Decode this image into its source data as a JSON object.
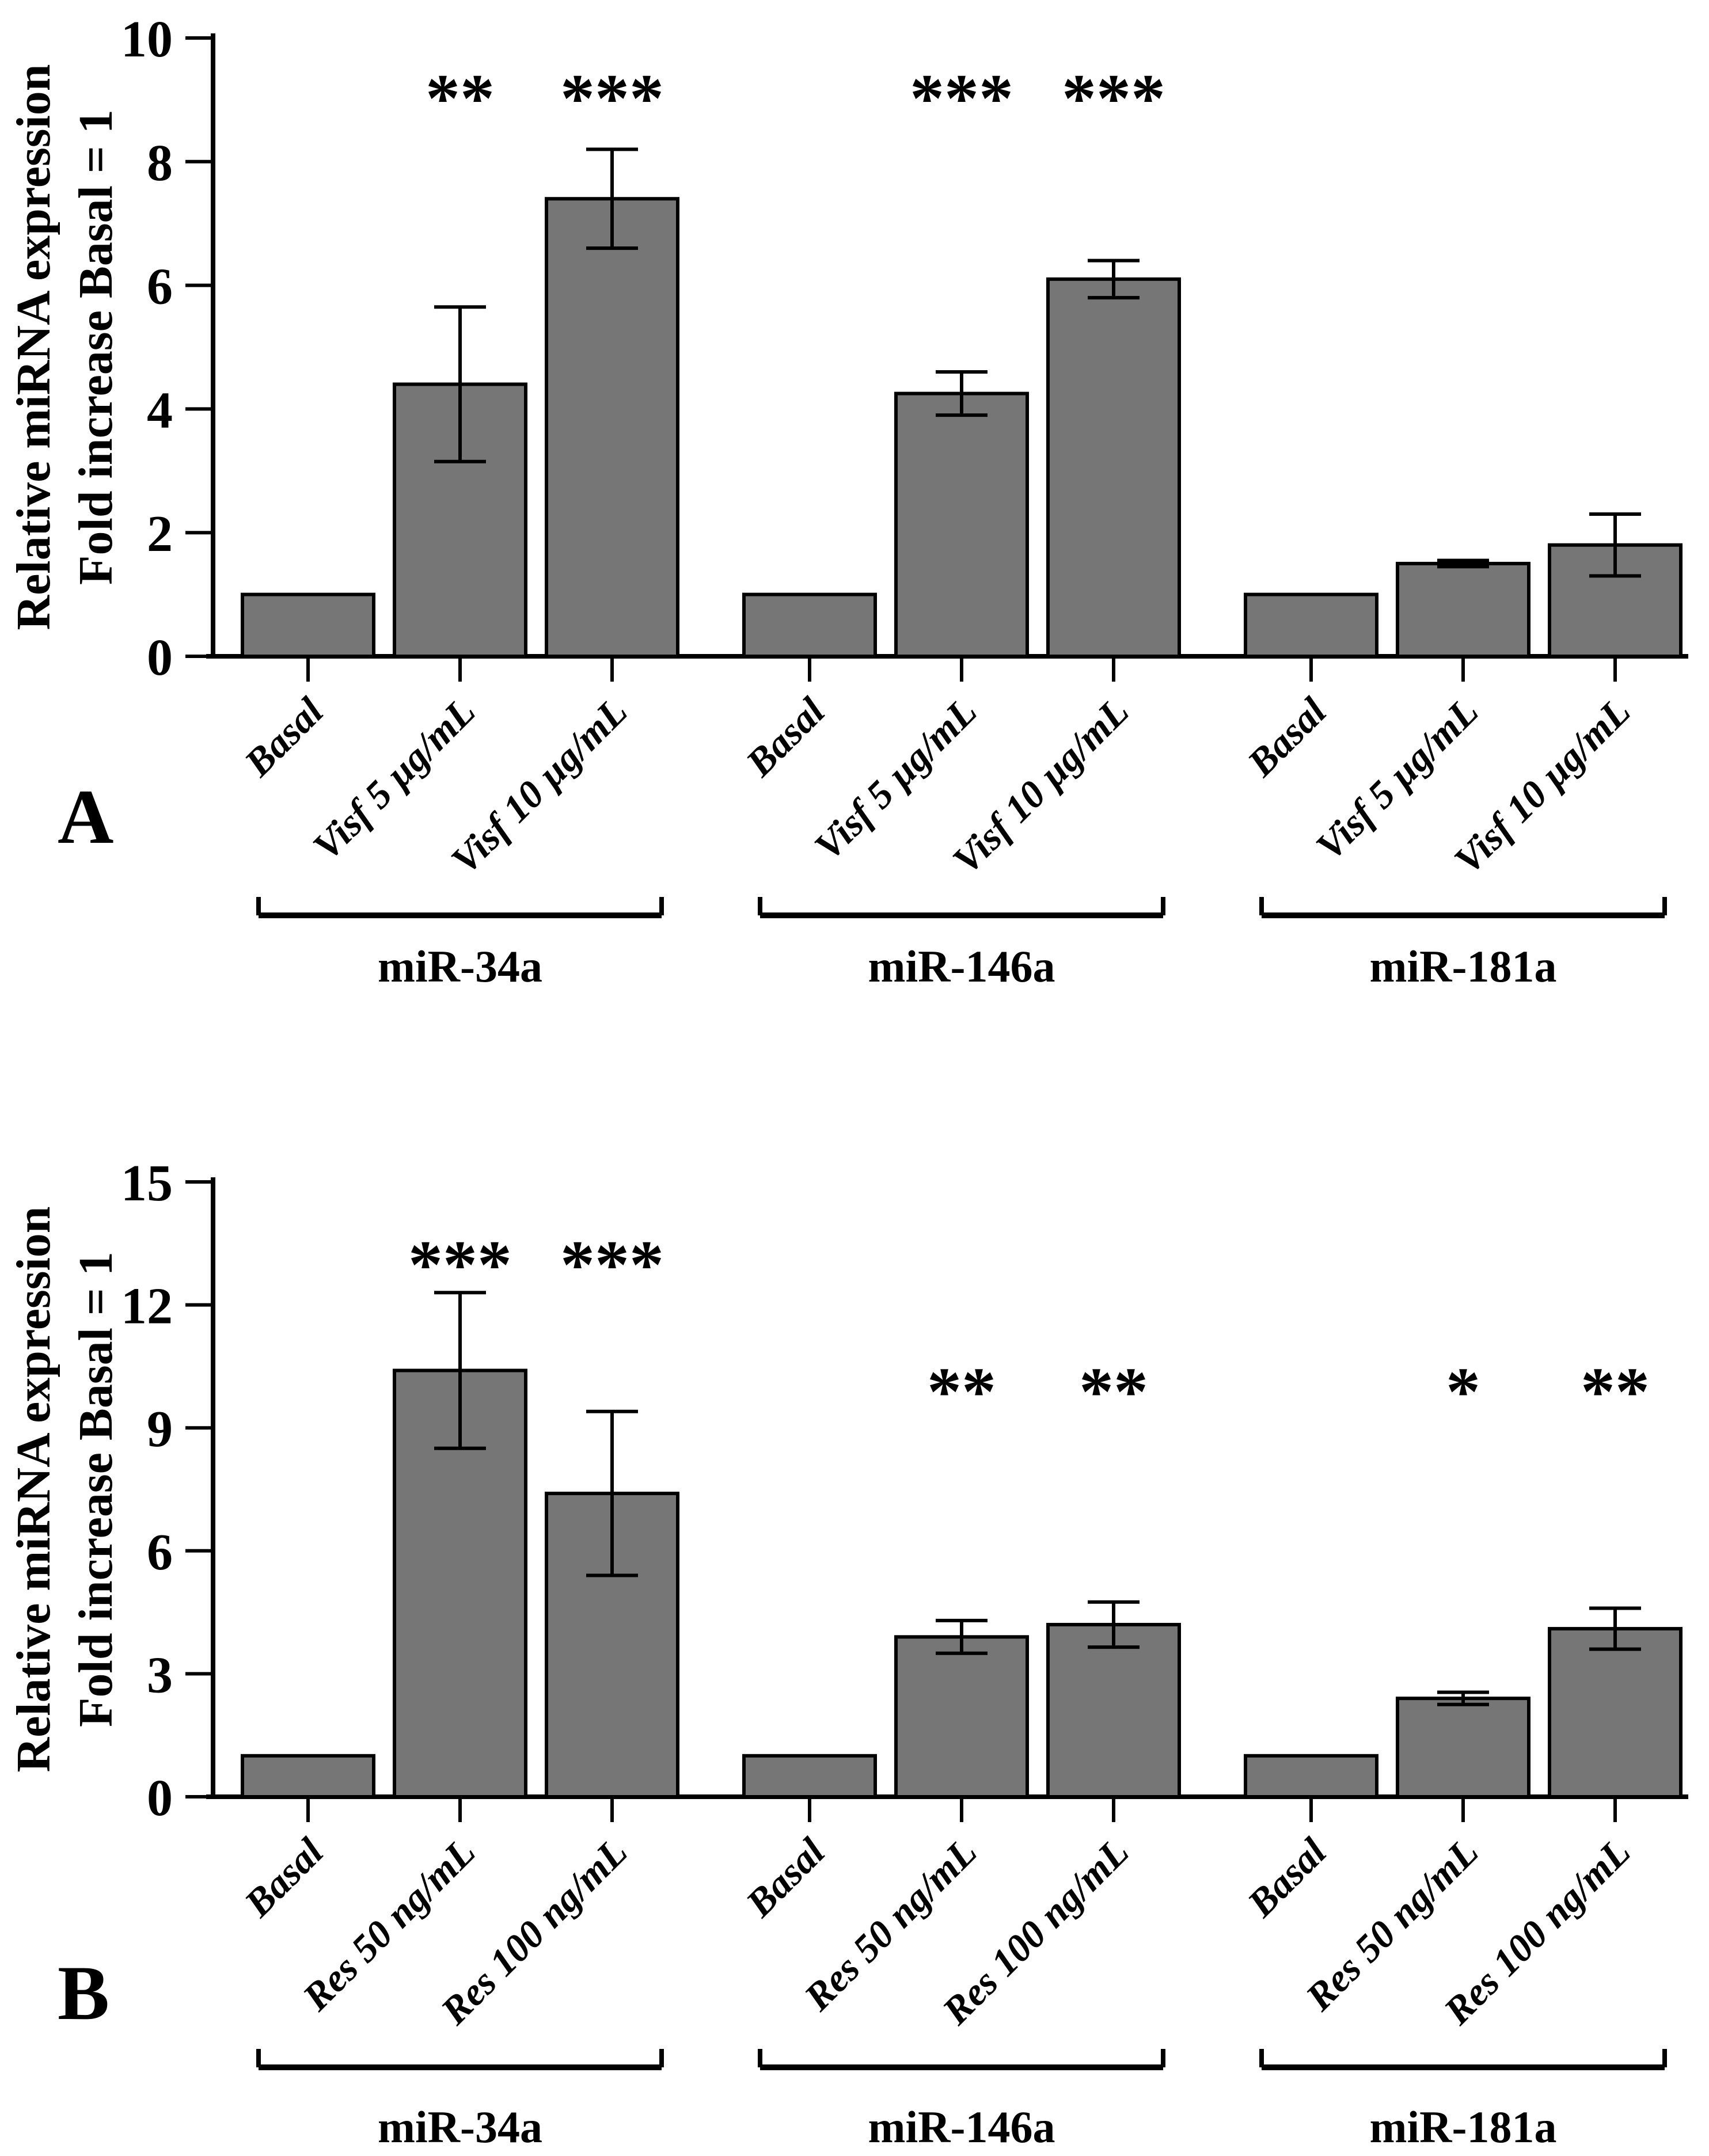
{
  "styles": {
    "bar_fill": "#767676",
    "bar_edge": "#000000",
    "axis_color": "#000000",
    "text_color": "#000000"
  },
  "chart_data": [
    {
      "panel": "A",
      "type": "bar",
      "title": "",
      "ylabel_line1": "Relative miRNA expression",
      "ylabel_line2": "Fold increase Basal = 1",
      "ylim": [
        0,
        10
      ],
      "yticks": [
        0,
        2,
        4,
        6,
        8,
        10
      ],
      "grid": false,
      "legend": "none",
      "bar_labels": [
        "Basal",
        "Visf 5 µg/mL",
        "Visf 10 µg/mL"
      ],
      "groups": [
        {
          "name": "miR-34a",
          "sig_y_units": 9.3,
          "bars": [
            {
              "label": "Basal",
              "value": 1.0,
              "error": 0,
              "sig": ""
            },
            {
              "label": "Visf 5 µg/mL",
              "value": 4.4,
              "error": 1.25,
              "sig": "**"
            },
            {
              "label": "Visf 10 µg/mL",
              "value": 7.4,
              "error": 0.8,
              "sig": "***"
            }
          ]
        },
        {
          "name": "miR-146a",
          "sig_y_units": 9.3,
          "bars": [
            {
              "label": "Basal",
              "value": 1.0,
              "error": 0,
              "sig": ""
            },
            {
              "label": "Visf 5 µg/mL",
              "value": 4.25,
              "error": 0.35,
              "sig": "***"
            },
            {
              "label": "Visf 10 µg/mL",
              "value": 6.1,
              "error": 0.3,
              "sig": "***"
            }
          ]
        },
        {
          "name": "miR-181a",
          "sig_y_units": 9.3,
          "bars": [
            {
              "label": "Basal",
              "value": 1.0,
              "error": 0,
              "sig": ""
            },
            {
              "label": "Visf 5 µg/mL",
              "value": 1.5,
              "error": 0.05,
              "sig": ""
            },
            {
              "label": "Visf 10 µg/mL",
              "value": 1.8,
              "error": 0.5,
              "sig": ""
            }
          ]
        }
      ]
    },
    {
      "panel": "B",
      "type": "bar",
      "title": "",
      "ylabel_line1": "Relative miRNA expression",
      "ylabel_line2": "Fold increase Basal = 1",
      "ylim": [
        0,
        15
      ],
      "yticks": [
        0,
        3,
        6,
        9,
        12,
        15
      ],
      "grid": false,
      "legend": "none",
      "bar_labels": [
        "Basal",
        "Res 50 ng/mL",
        "Res 100 ng/mL"
      ],
      "groups": [
        {
          "name": "miR-34a",
          "sig_y_units": 13.4,
          "bars": [
            {
              "label": "Basal",
              "value": 1.0,
              "error": 0,
              "sig": ""
            },
            {
              "label": "Res 50 ng/mL",
              "value": 10.4,
              "error": 1.9,
              "sig": "***"
            },
            {
              "label": "Res 100 ng/mL",
              "value": 7.4,
              "error": 2.0,
              "sig": "***"
            }
          ]
        },
        {
          "name": "miR-146a",
          "sig_y_units": 10.3,
          "bars": [
            {
              "label": "Basal",
              "value": 1.0,
              "error": 0,
              "sig": ""
            },
            {
              "label": "Res 50 ng/mL",
              "value": 3.9,
              "error": 0.4,
              "sig": "**"
            },
            {
              "label": "Res 100 ng/mL",
              "value": 4.2,
              "error": 0.55,
              "sig": "**"
            }
          ]
        },
        {
          "name": "miR-181a",
          "sig_y_units": 10.3,
          "bars": [
            {
              "label": "Basal",
              "value": 1.0,
              "error": 0,
              "sig": ""
            },
            {
              "label": "Res 50 ng/mL",
              "value": 2.4,
              "error": 0.15,
              "sig": "*"
            },
            {
              "label": "Res 100 ng/mL",
              "value": 4.1,
              "error": 0.5,
              "sig": "**"
            }
          ]
        }
      ]
    }
  ]
}
